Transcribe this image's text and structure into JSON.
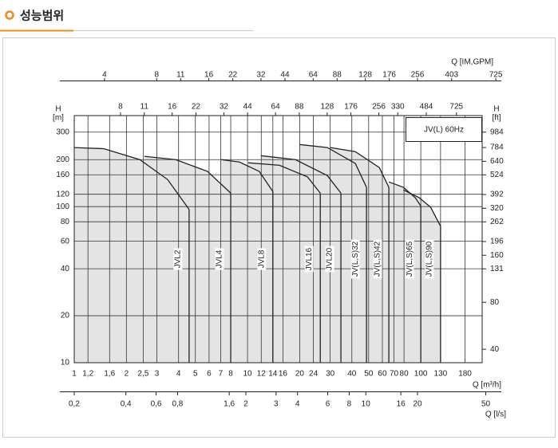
{
  "header": {
    "title": "성능범위"
  },
  "chart_data": {
    "type": "range",
    "annotation": "JV(L) 60Hz",
    "y_label": "H",
    "y_unit": "[m]",
    "y2_label": "H",
    "y2_unit": "[ft]",
    "x_label": "Q [m³/h]",
    "x2_label": "Q [IM,GPM]",
    "x4_label": "Q [l/s]",
    "log_x": true,
    "log_y": true,
    "grid": true,
    "color": "#222222",
    "fill_color": "#e4e4e4",
    "xlim": [
      1,
      226
    ],
    "xticks": [
      1,
      {
        "value": 1.2,
        "label": "1,2"
      },
      {
        "value": 1.6,
        "label": "1,6"
      },
      2,
      {
        "value": 2.5,
        "label": "2,5"
      },
      3,
      4,
      5,
      6,
      7,
      8,
      10,
      12,
      14,
      16,
      20,
      24,
      30,
      40,
      50,
      60,
      70,
      80,
      100,
      130,
      180
    ],
    "ylim": [
      10,
      383
    ],
    "yticks": [
      10,
      20,
      40,
      60,
      80,
      100,
      120,
      160,
      200,
      300
    ],
    "y2lim": [
      32.8,
      1256
    ],
    "y2ticks": [
      40,
      80,
      131,
      160,
      196,
      262,
      320,
      392,
      524,
      640,
      784,
      984
    ],
    "x2lim": [
      2.21,
      780
    ],
    "x2ticks": [
      4,
      8,
      11,
      16,
      22,
      32,
      44,
      64,
      88,
      128,
      176,
      256,
      403,
      725
    ],
    "x3lim": [
      4.3,
      1024
    ],
    "x3ticks": [
      8,
      11,
      16,
      22,
      32,
      44,
      64,
      88,
      128,
      176,
      256,
      330,
      484,
      725
    ],
    "x4lim": [
      0.165,
      61.6
    ],
    "x4ticks": [
      {
        "value": 0.2,
        "label": "0,2"
      },
      {
        "value": 0.4,
        "label": "0,4"
      },
      {
        "value": 0.6,
        "label": "0,6"
      },
      {
        "value": 0.8,
        "label": "0,8"
      },
      {
        "value": 1.6,
        "label": "1,6"
      },
      2,
      3,
      4,
      6,
      8,
      10,
      16,
      20,
      50
    ],
    "series": [
      {
        "name": "JVL2",
        "x": [
          1,
          1.48,
          2.39,
          3.46,
          4.6
        ],
        "values": [
          239,
          235,
          200,
          149,
          96
        ]
      },
      {
        "name": "JVL4",
        "x": [
          2.54,
          3.85,
          5.88,
          8.0
        ],
        "values": [
          210,
          200,
          168,
          122
        ]
      },
      {
        "name": "JVL8",
        "x": [
          7.05,
          8.98,
          11.7,
          14.0
        ],
        "values": [
          200,
          193,
          168,
          125
        ]
      },
      {
        "name": "JVL16",
        "x": [
          10.1,
          15.3,
          22.2,
          26.3
        ],
        "values": [
          191,
          184,
          155,
          122
        ]
      },
      {
        "name": "JVL20",
        "x": [
          11.95,
          18.9,
          28.9,
          34.6
        ],
        "values": [
          212,
          200,
          158,
          122
        ]
      },
      {
        "name": "JV(L,S)32",
        "x": [
          19.9,
          28.9,
          41.9,
          48.6
        ],
        "values": [
          250,
          239,
          189,
          133
        ]
      },
      {
        "name": "JV(L,S)42",
        "x": [
          30.1,
          41.9,
          57.6,
          65.4
        ],
        "values": [
          239,
          225,
          178,
          133
        ]
      },
      {
        "name": "JV(L,S)65",
        "x": [
          65.4,
          79.3,
          92.9,
          100
        ],
        "values": [
          144,
          133,
          114,
          101
        ]
      },
      {
        "name": "JV(L,S)90",
        "x": [
          79.3,
          98,
          114,
          130
        ],
        "values": [
          128,
          114,
          99,
          75
        ]
      }
    ]
  }
}
